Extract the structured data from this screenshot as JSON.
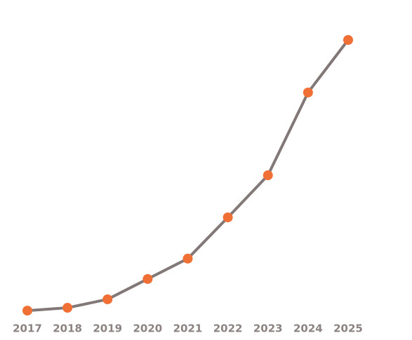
{
  "chart_data": {
    "type": "line",
    "categories": [
      "2017",
      "2018",
      "2019",
      "2020",
      "2021",
      "2022",
      "2023",
      "2024",
      "2025"
    ],
    "series": [
      {
        "values": [
          4.2,
          5.2,
          8.2,
          15.4,
          22.6,
          37.2,
          52.1,
          81.4,
          100
        ],
        "color": "#837878",
        "marker_color": "#ef6f35"
      }
    ],
    "ylim": [
      0,
      100
    ]
  }
}
